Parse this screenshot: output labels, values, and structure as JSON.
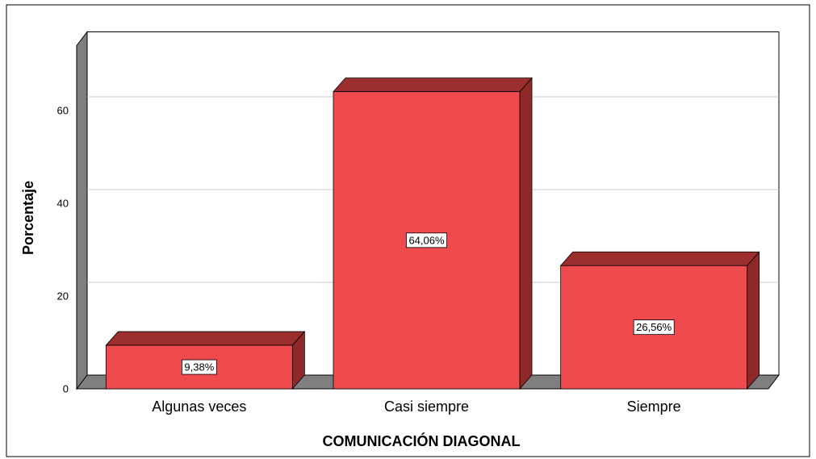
{
  "chart_data": {
    "type": "bar3d",
    "categories": [
      "Algunas veces",
      "Casi siempre",
      "Siempre"
    ],
    "values": [
      9.38,
      64.06,
      26.56
    ],
    "value_labels": [
      "9,38%",
      "64,06%",
      "26,56%"
    ],
    "color": "#ef4b4f",
    "xlabel": "COMUNICACIÓN DIAGONAL",
    "ylabel": "Porcentaje",
    "ylim": [
      0,
      74
    ],
    "yticks": [
      0,
      20,
      40,
      60
    ],
    "grid": true
  }
}
